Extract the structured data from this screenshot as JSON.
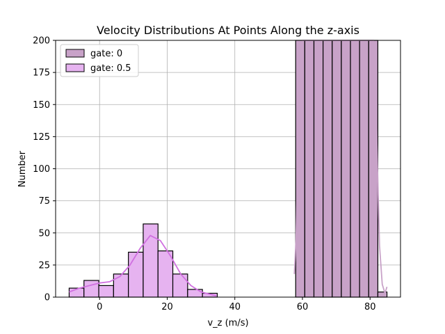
{
  "chart_data": {
    "type": "bar",
    "title": "Velocity Distributions At Points Along the z-axis",
    "xlabel": "v_z (m/s)",
    "ylabel": "Number",
    "xlim": [
      -13,
      89
    ],
    "ylim": [
      0,
      200
    ],
    "xticks": [
      0,
      20,
      40,
      60,
      80
    ],
    "yticks": [
      0,
      25,
      50,
      75,
      100,
      125,
      150,
      175,
      200
    ],
    "grid": true,
    "legend_position": "top-left",
    "series": [
      {
        "name": "gate: 0",
        "color": "#c8a2c8",
        "edgecolor": "#000000",
        "bin_width": 2.7,
        "bins_start": [
          58,
          60.7,
          63.4,
          66.1,
          68.8,
          71.5,
          74.2,
          76.9,
          79.6,
          82.3
        ],
        "values": [
          200,
          200,
          200,
          200,
          200,
          200,
          200,
          200,
          200,
          4
        ],
        "kde_x": [
          57.6,
          58.1,
          58.6,
          59.2,
          60.0,
          81.0,
          81.6,
          82.2,
          82.8,
          83.6,
          84.4,
          85.0
        ],
        "kde_y": [
          18,
          45,
          110,
          180,
          200,
          200,
          170,
          100,
          40,
          10,
          3,
          8
        ]
      },
      {
        "name": "gate: 0.5",
        "color": "#e6b3f0",
        "edgecolor": "#000000",
        "bin_width": 4.38,
        "bins_start": [
          -9.0,
          -4.62,
          -0.24,
          4.14,
          8.52,
          12.9,
          17.28,
          21.66,
          26.04,
          30.42
        ],
        "values": [
          7,
          13,
          9,
          18,
          35,
          57,
          36,
          18,
          6,
          3
        ],
        "kde_x": [
          -9,
          -6,
          -3,
          0,
          3,
          6,
          9,
          12,
          15,
          18,
          21,
          24,
          27,
          30,
          33,
          34.5
        ],
        "kde_y": [
          4,
          7,
          9,
          11,
          12,
          16,
          25,
          38,
          48,
          44,
          32,
          18,
          9,
          4,
          2,
          1
        ],
        "kde_color": "#d070e0"
      }
    ]
  }
}
